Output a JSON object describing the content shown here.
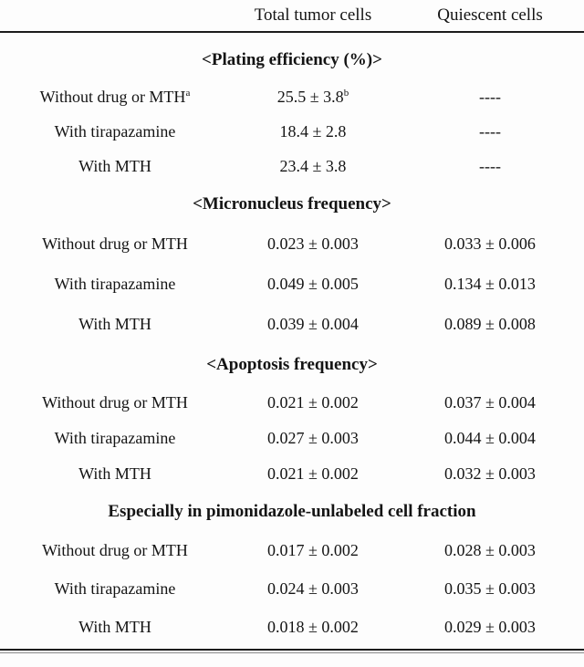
{
  "page": {
    "background": "#fdfdfd",
    "text_color": "#141414",
    "rule_color": "#1c1c1c"
  },
  "table": {
    "column_headers": [
      {
        "label": "Total tumor cells"
      },
      {
        "label": "Quiescent cells"
      }
    ],
    "no_data_marker": "----",
    "sections": [
      {
        "title": "<Plating efficiency (%)>",
        "rows": [
          {
            "label": "Without drug or MTH",
            "label_sup": "a",
            "total": "25.5 ± 3.8",
            "total_sup": "b",
            "quiescent": "----"
          },
          {
            "label": "With tirapazamine",
            "total": "18.4 ± 2.8",
            "quiescent": "----"
          },
          {
            "label": "With MTH",
            "total": "23.4 ± 3.8",
            "quiescent": "----"
          }
        ]
      },
      {
        "title": "<Micronucleus frequency>",
        "rows": [
          {
            "label": "Without drug or MTH",
            "total": "0.023 ± 0.003",
            "quiescent": "0.033 ± 0.006"
          },
          {
            "label": "With tirapazamine",
            "total": "0.049 ± 0.005",
            "quiescent": "0.134 ± 0.013"
          },
          {
            "label": "With MTH",
            "total": "0.039 ± 0.004",
            "quiescent": "0.089 ± 0.008"
          }
        ]
      },
      {
        "title": "<Apoptosis frequency>",
        "rows": [
          {
            "label": "Without drug or MTH",
            "total": "0.021 ± 0.002",
            "quiescent": "0.037 ± 0.004"
          },
          {
            "label": "With tirapazamine",
            "total": "0.027 ± 0.003",
            "quiescent": "0.044 ± 0.004"
          },
          {
            "label": "With MTH",
            "total": "0.021 ± 0.002",
            "quiescent": "0.032 ± 0.003"
          }
        ]
      },
      {
        "title": "Especially in pimonidazole-unlabeled cell fraction",
        "rows": [
          {
            "label": "Without drug or MTH",
            "total": "0.017 ± 0.002",
            "quiescent": "0.028 ± 0.003"
          },
          {
            "label": "With tirapazamine",
            "total": "0.024 ± 0.003",
            "quiescent": "0.035 ± 0.003"
          },
          {
            "label": "With MTH",
            "total": "0.018 ± 0.002",
            "quiescent": "0.029 ± 0.003"
          }
        ]
      }
    ]
  }
}
